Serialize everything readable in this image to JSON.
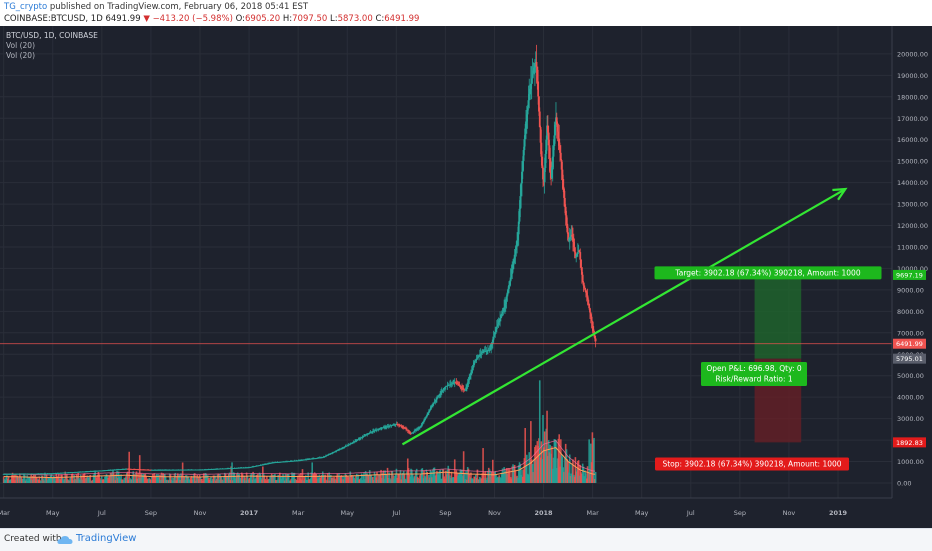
{
  "header": {
    "author": "TG_crypto",
    "published_text": " published on TradingView.com, February 06, 2018 05:41 EST",
    "symbol": "COINBASE:BTCUSD, 1D",
    "last": "6491.99",
    "change": "−413.20 (−5.98%)",
    "open_label": "O:",
    "open": "6905.20",
    "high_label": "H:",
    "high": "7097.50",
    "low_label": "L:",
    "low": "5873.00",
    "close_label": "C:",
    "close": "6491.99"
  },
  "legend": {
    "title": "BTC/USD, 1D, COINBASE",
    "vol1": "Vol (20)",
    "vol2": "Vol (20)"
  },
  "footer": {
    "created_with": "Created with",
    "brand": "TradingView"
  },
  "colors": {
    "background": "#1e222d",
    "grid": "#2a2e39",
    "up": "#26a69a",
    "down": "#ef5350",
    "trend": "#33e633",
    "target_zone": "#1f6b2c",
    "stop_zone": "#6b1f25",
    "label_green": "#1db81d",
    "label_red": "#e31b1b"
  },
  "chart_data": {
    "type": "line",
    "y_axis_ticks": [
      "20000.00",
      "19000.00",
      "18000.00",
      "17000.00",
      "16000.00",
      "15000.00",
      "14000.00",
      "13000.00",
      "12000.00",
      "11000.00",
      "10000.00",
      "9000.00",
      "8000.00",
      "7000.00",
      "6000.00",
      "5000.00",
      "4000.00",
      "3000.00",
      "2000.00",
      "1000.00",
      "0.00"
    ],
    "ylim": [
      -700,
      21300
    ],
    "x_axis_ticks": [
      "Mar",
      "May",
      "Jul",
      "Sep",
      "Nov",
      "2017",
      "Mar",
      "May",
      "Jul",
      "Sep",
      "Nov",
      "2018",
      "Mar",
      "May",
      "Jul",
      "Sep",
      "Nov",
      "2019"
    ],
    "x_tick_months": [
      2,
      4,
      6,
      8,
      10,
      12,
      14,
      16,
      18,
      20,
      22,
      24,
      26,
      28,
      30,
      32,
      34,
      36
    ],
    "xlim_months": [
      1.85,
      38.2
    ],
    "price_series": {
      "x": [
        2.0,
        4,
        6,
        7,
        8,
        10,
        12,
        13,
        14,
        15,
        16,
        17,
        17.5,
        18,
        18.3,
        18.6,
        19,
        19.5,
        20,
        20.4,
        20.8,
        21.2,
        21.5,
        21.8,
        22.1,
        22.4,
        22.7,
        22.95,
        23.1,
        23.25,
        23.4,
        23.55,
        23.7,
        23.8,
        23.9,
        24.0,
        24.15,
        24.3,
        24.5,
        24.7,
        24.85,
        25.0,
        25.15,
        25.3,
        25.45,
        25.6,
        25.75,
        25.85,
        25.95,
        26.05,
        26.15
      ],
      "y": [
        420,
        450,
        580,
        660,
        610,
        620,
        730,
        960,
        1050,
        1200,
        1750,
        2400,
        2600,
        2750,
        2600,
        2300,
        2650,
        3700,
        4500,
        4700,
        4300,
        5700,
        6100,
        6200,
        7300,
        8200,
        9800,
        11500,
        14200,
        16500,
        18000,
        19100,
        19700,
        17600,
        15400,
        13800,
        16800,
        14100,
        17100,
        15100,
        13100,
        11300,
        11600,
        10500,
        10900,
        9300,
        8800,
        8200,
        7600,
        6900,
        6491.99
      ]
    },
    "volume_ma_series": {
      "x": [
        2.0,
        4,
        6,
        7,
        8,
        10,
        12,
        14,
        16,
        18,
        19,
        20,
        21,
        22,
        23,
        23.5,
        24,
        24.5,
        25,
        25.5,
        26,
        26.2
      ],
      "y": [
        300,
        250,
        330,
        360,
        300,
        280,
        320,
        300,
        320,
        420,
        420,
        500,
        420,
        380,
        600,
        950,
        1500,
        1650,
        1000,
        600,
        420,
        400
      ]
    },
    "trend_line": {
      "x1": 18.25,
      "y1": 1800,
      "x2": 36.3,
      "y2": 13700
    },
    "position": {
      "x_start": 32.6,
      "x_end": 34.5,
      "entry": 5795.01,
      "target": 9697.19,
      "stop": 1892.83
    },
    "price_labels": [
      "9697.19",
      "6491.99",
      "5795.01",
      "1892.83"
    ],
    "target_label": "Target: 3902.18 (67.34%) 390218, Amount: 1000",
    "pnl_label_line1": "Open P&L: 696.98, Qty: 0",
    "pnl_label_line2": "Risk/Reward Ratio: 1",
    "stop_label": "Stop: 3902.18 (67.34%) 390218, Amount: 1000",
    "event_badge": "1"
  }
}
